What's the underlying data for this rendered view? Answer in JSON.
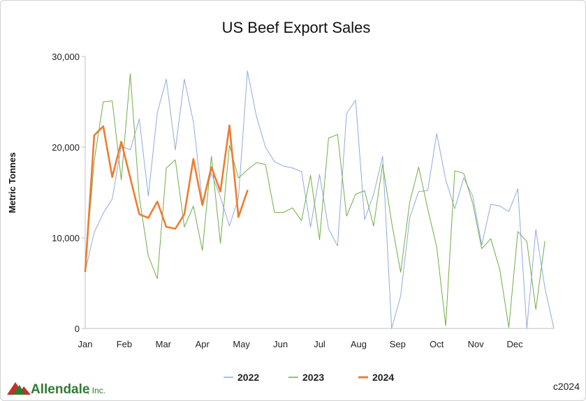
{
  "chart_data": {
    "type": "line",
    "title": "US Beef Export Sales",
    "ylabel": "Metric Tonnes",
    "xlabel": "",
    "ylim": [
      0,
      30000
    ],
    "yticks": [
      0,
      10000,
      20000,
      30000
    ],
    "ytick_labels": [
      "0",
      "10,000",
      "20,000",
      "30,000"
    ],
    "month_labels": [
      "Jan",
      "Feb",
      "Mar",
      "Apr",
      "May",
      "Jun",
      "Jul",
      "Aug",
      "Sep",
      "Oct",
      "Nov",
      "Dec"
    ],
    "weeks_per_year": 52,
    "legend_position": "bottom",
    "grid": false,
    "series": [
      {
        "name": "2022",
        "color": "#8faadc",
        "width": 1,
        "values": [
          6300,
          10600,
          12700,
          14300,
          20100,
          19700,
          23100,
          14600,
          23800,
          27500,
          19700,
          27500,
          22800,
          14000,
          17100,
          14500,
          11300,
          14400,
          28400,
          23400,
          20000,
          18400,
          17900,
          17700,
          17300,
          11200,
          17000,
          11000,
          9100,
          23700,
          25200,
          12000,
          14800,
          19000,
          0,
          3600,
          12200,
          15100,
          15200,
          21500,
          16400,
          13200,
          16600,
          14600,
          9200,
          13700,
          13500,
          12900,
          15400,
          0,
          10900,
          4500,
          0
        ]
      },
      {
        "name": "2023",
        "color": "#70ad47",
        "width": 1,
        "values": [
          6700,
          18500,
          25000,
          25100,
          16400,
          28100,
          14500,
          8000,
          5500,
          17700,
          18600,
          11200,
          13500,
          8600,
          19000,
          9400,
          20200,
          16600,
          17500,
          18300,
          18100,
          12800,
          12800,
          13300,
          11900,
          16900,
          9800,
          21000,
          21400,
          12400,
          14800,
          15200,
          11300,
          18100,
          11700,
          6200,
          13900,
          17800,
          13200,
          9000,
          300,
          17400,
          17100,
          13800,
          8800,
          9900,
          6500,
          100,
          10700,
          9600,
          2100,
          9600
        ]
      },
      {
        "name": "2024",
        "color": "#ed7d31",
        "width": 2.6,
        "values": [
          6300,
          21300,
          22300,
          16700,
          20600,
          16600,
          12600,
          12200,
          14000,
          11200,
          11000,
          12600,
          18700,
          13600,
          17800,
          15100,
          22400,
          12300,
          15200
        ]
      }
    ]
  },
  "footer": {
    "logo_text": "Allendale",
    "logo_suffix": ", Inc.",
    "copyright": "c2024"
  }
}
